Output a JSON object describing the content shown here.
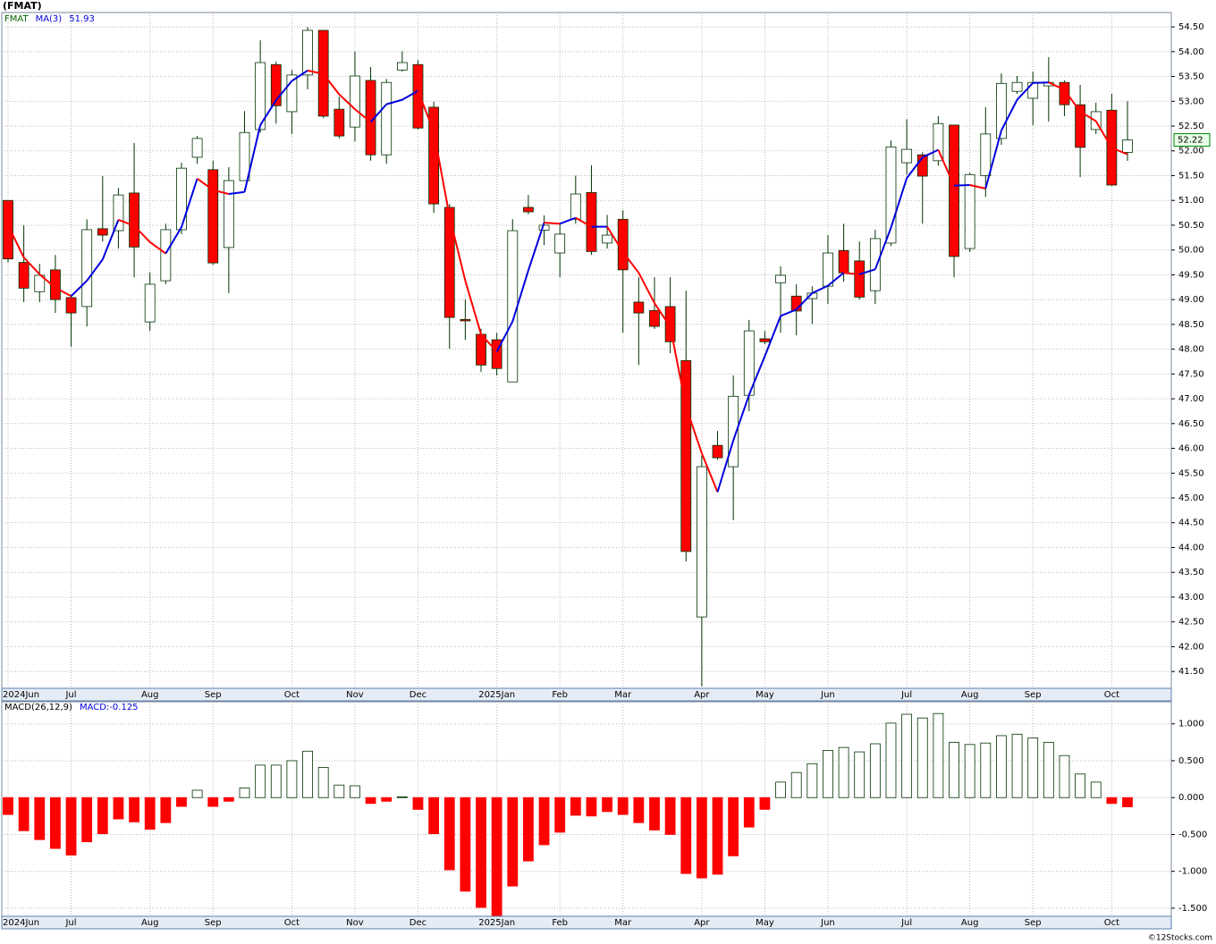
{
  "chart_data": [
    {
      "type": "candlestick",
      "title": "(FMAT)",
      "categories": [
        "2024Jun",
        null,
        null,
        null,
        "Jul",
        null,
        null,
        null,
        null,
        "Aug",
        null,
        null,
        null,
        "Sep",
        null,
        null,
        null,
        null,
        "Oct",
        null,
        null,
        null,
        "Nov",
        null,
        null,
        null,
        "Dec",
        null,
        null,
        null,
        null,
        "2025Jan",
        null,
        null,
        null,
        "Feb",
        null,
        null,
        null,
        "Mar",
        null,
        null,
        null,
        null,
        "Apr",
        null,
        null,
        null,
        "May",
        null,
        null,
        null,
        "Jun",
        null,
        null,
        null,
        null,
        "Jul",
        null,
        null,
        null,
        "Aug",
        null,
        null,
        null,
        "Sep",
        null,
        null,
        null,
        null,
        "Oct",
        null
      ],
      "series": [
        {
          "name": "FMAT",
          "up_color": "#ffffff",
          "down_color": "#ff0000",
          "outline_color": "#003300",
          "open": [
            51.0,
            49.75,
            49.16,
            49.6,
            49.04,
            48.86,
            50.43,
            50.39,
            51.15,
            48.55,
            49.38,
            50.41,
            51.87,
            51.62,
            50.05,
            51.4,
            52.43,
            53.74,
            52.79,
            53.53,
            54.43,
            52.84,
            52.48,
            53.42,
            51.92,
            53.63,
            53.74,
            52.88,
            50.86,
            48.6,
            48.3,
            48.19,
            47.34,
            50.86,
            50.4,
            49.94,
            50.62,
            51.16,
            50.14,
            50.62,
            48.95,
            48.78,
            48.86,
            47.77,
            42.6,
            46.06,
            45.63,
            47.07,
            48.21,
            49.34,
            49.07,
            49.02,
            49.27,
            49.99,
            49.78,
            49.18,
            50.14,
            51.76,
            51.92,
            51.8,
            52.52,
            50.03,
            51.5,
            52.25,
            53.2,
            53.06,
            53.31,
            53.38,
            52.93,
            52.43,
            52.82,
            51.97
          ],
          "high": [
            51.0,
            50.5,
            49.72,
            49.9,
            49.1,
            50.62,
            51.49,
            51.25,
            52.16,
            49.55,
            50.53,
            51.76,
            52.3,
            51.8,
            51.67,
            52.8,
            54.23,
            53.8,
            53.63,
            54.5,
            54.43,
            53.09,
            54.0,
            53.69,
            53.45,
            54.01,
            53.83,
            52.99,
            50.93,
            49.0,
            48.41,
            48.33,
            50.62,
            51.11,
            50.7,
            50.53,
            51.5,
            51.71,
            50.71,
            50.8,
            49.45,
            49.45,
            49.45,
            49.18,
            45.85,
            46.35,
            47.47,
            48.59,
            48.37,
            49.67,
            49.31,
            49.27,
            50.3,
            50.53,
            50.17,
            50.41,
            52.21,
            52.64,
            51.97,
            52.7,
            52.52,
            51.56,
            52.88,
            53.56,
            53.51,
            53.6,
            53.89,
            53.42,
            53.33,
            52.97,
            53.15,
            53.0
          ],
          "low": [
            49.75,
            48.95,
            48.95,
            48.73,
            48.05,
            48.46,
            50.17,
            50.03,
            49.45,
            48.37,
            49.31,
            50.32,
            51.74,
            49.7,
            49.13,
            51.4,
            52.37,
            52.55,
            52.34,
            53.24,
            52.66,
            52.25,
            52.19,
            51.8,
            51.74,
            53.6,
            52.43,
            50.75,
            48.01,
            48.19,
            47.54,
            47.47,
            47.34,
            50.72,
            50.1,
            49.45,
            50.53,
            49.9,
            50.03,
            48.33,
            47.68,
            48.41,
            47.92,
            43.72,
            41.2,
            45.77,
            44.55,
            46.75,
            48.1,
            48.33,
            48.28,
            48.51,
            48.91,
            49.36,
            49.0,
            48.91,
            50.08,
            51.52,
            50.53,
            51.7,
            49.45,
            49.96,
            51.07,
            52.12,
            53.15,
            52.52,
            52.59,
            52.7,
            51.47,
            52.34,
            51.29,
            51.8
          ],
          "close": [
            49.82,
            49.23,
            49.49,
            49.0,
            48.73,
            50.41,
            50.3,
            51.11,
            50.06,
            49.31,
            50.41,
            51.65,
            52.25,
            49.74,
            51.4,
            52.37,
            53.78,
            52.91,
            53.53,
            54.43,
            52.7,
            52.3,
            53.51,
            51.92,
            53.38,
            53.78,
            52.46,
            50.93,
            48.64,
            48.57,
            47.68,
            47.61,
            50.39,
            50.77,
            50.5,
            50.32,
            51.13,
            49.97,
            50.3,
            49.6,
            48.73,
            48.46,
            48.15,
            43.92,
            45.63,
            45.81,
            47.05,
            48.37,
            48.15,
            49.49,
            48.77,
            49.13,
            49.94,
            49.54,
            49.05,
            50.23,
            52.08,
            52.03,
            51.49,
            52.55,
            49.87,
            51.52,
            52.34,
            53.36,
            53.38,
            53.38,
            53.38,
            52.93,
            52.07,
            52.79,
            51.31,
            52.22
          ]
        },
        {
          "name": "MA(3)",
          "up_color": "#0000dd",
          "down_color": "#ff0000",
          "values": [
            50.5,
            49.85,
            49.51,
            49.24,
            49.07,
            49.38,
            49.81,
            50.61,
            50.49,
            50.16,
            49.93,
            50.46,
            51.44,
            51.21,
            51.13,
            51.17,
            52.52,
            53.02,
            53.41,
            53.62,
            53.55,
            53.14,
            52.84,
            52.58,
            52.94,
            53.03,
            53.21,
            52.39,
            50.68,
            49.38,
            48.3,
            47.95,
            48.56,
            49.59,
            50.55,
            50.53,
            50.65,
            50.47,
            50.47,
            49.96,
            49.54,
            48.93,
            48.45,
            46.84,
            45.9,
            45.12,
            46.16,
            47.08,
            47.86,
            48.67,
            48.8,
            49.13,
            49.28,
            49.54,
            49.51,
            49.61,
            50.45,
            51.45,
            51.87,
            52.02,
            51.3,
            51.31,
            51.24,
            52.41,
            53.03,
            53.37,
            53.38,
            53.23,
            52.79,
            52.6,
            52.06,
            51.93
          ]
        }
      ],
      "ylim": [
        41.16,
        54.79
      ],
      "yticks": [
        {
          "value": 41.5,
          "label": "41.50"
        },
        {
          "value": 42,
          "label": "42.00"
        },
        {
          "value": 42.5,
          "label": "42.50"
        },
        {
          "value": 43,
          "label": "43.00"
        },
        {
          "value": 43.5,
          "label": "43.50"
        },
        {
          "value": 44,
          "label": "44.00"
        },
        {
          "value": 44.5,
          "label": "44.50"
        },
        {
          "value": 45,
          "label": "45.00"
        },
        {
          "value": 45.5,
          "label": "45.50"
        },
        {
          "value": 46,
          "label": "46.00"
        },
        {
          "value": 46.5,
          "label": "46.50"
        },
        {
          "value": 47,
          "label": "47.00"
        },
        {
          "value": 47.5,
          "label": "47.50"
        },
        {
          "value": 48,
          "label": "48.00"
        },
        {
          "value": 48.5,
          "label": "48.50"
        },
        {
          "value": 49,
          "label": "49.00"
        },
        {
          "value": 49.5,
          "label": "49.50"
        },
        {
          "value": 50,
          "label": "50.00"
        },
        {
          "value": 50.5,
          "label": "50.50"
        },
        {
          "value": 51,
          "label": "51.00"
        },
        {
          "value": 51.5,
          "label": "51.50"
        },
        {
          "value": 52,
          "label": "52.00"
        },
        {
          "value": 52.5,
          "label": "52.50"
        },
        {
          "value": 53,
          "label": "53.00"
        },
        {
          "value": 53.5,
          "label": "53.50"
        },
        {
          "value": 54,
          "label": "54.00"
        },
        {
          "value": 54.5,
          "label": "54.50"
        }
      ],
      "grid": true
    },
    {
      "type": "bar",
      "title": "MACD(26,12,9)",
      "value_prefix": "MACD:",
      "categories": [
        "2024Jun",
        null,
        null,
        null,
        "Jul",
        null,
        null,
        null,
        null,
        "Aug",
        null,
        null,
        null,
        "Sep",
        null,
        null,
        null,
        null,
        "Oct",
        null,
        null,
        null,
        "Nov",
        null,
        null,
        null,
        "Dec",
        null,
        null,
        null,
        null,
        "2025Jan",
        null,
        null,
        null,
        "Feb",
        null,
        null,
        null,
        "Mar",
        null,
        null,
        null,
        null,
        "Apr",
        null,
        null,
        null,
        "May",
        null,
        null,
        null,
        "Jun",
        null,
        null,
        null,
        null,
        "Jul",
        null,
        null,
        null,
        "Aug",
        null,
        null,
        null,
        "Sep",
        null,
        null,
        null,
        null,
        "Oct",
        null
      ],
      "values": [
        -0.23,
        -0.45,
        -0.57,
        -0.69,
        -0.78,
        -0.6,
        -0.49,
        -0.29,
        -0.33,
        -0.43,
        -0.34,
        -0.12,
        0.1,
        -0.12,
        -0.05,
        0.13,
        0.44,
        0.44,
        0.5,
        0.63,
        0.41,
        0.17,
        0.16,
        -0.08,
        -0.05,
        0.01,
        -0.16,
        -0.49,
        -0.98,
        -1.27,
        -1.49,
        -1.6,
        -1.2,
        -0.86,
        -0.64,
        -0.47,
        -0.24,
        -0.25,
        -0.19,
        -0.23,
        -0.34,
        -0.44,
        -0.5,
        -1.03,
        -1.09,
        -1.04,
        -0.79,
        -0.4,
        -0.16,
        0.21,
        0.34,
        0.46,
        0.64,
        0.68,
        0.62,
        0.73,
        1.01,
        1.13,
        1.08,
        1.14,
        0.75,
        0.72,
        0.74,
        0.84,
        0.86,
        0.81,
        0.75,
        0.57,
        0.32,
        0.21,
        -0.08,
        -0.125
      ],
      "up_color": "#ffffff",
      "down_color": "#ff0000",
      "outline_color": "#003300",
      "value_color": "#0000dd",
      "ylim": [
        -1.61,
        1.3
      ],
      "yticks": [
        {
          "value": 1,
          "label": "1.000"
        },
        {
          "value": 0.5,
          "label": "0.500"
        },
        {
          "value": 0,
          "label": "0.000"
        },
        {
          "value": -0.5,
          "label": "-0.500"
        },
        {
          "value": -1,
          "label": "-1.000"
        },
        {
          "value": -1.5,
          "label": "-1.500"
        }
      ],
      "grid": true
    }
  ],
  "footer": "©12Stocks.com"
}
